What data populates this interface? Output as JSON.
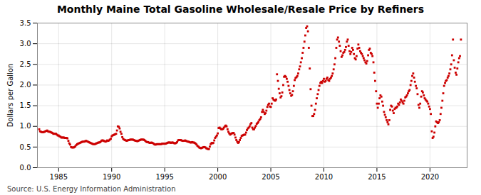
{
  "chart_data": {
    "type": "scatter",
    "title": "Monthly Maine Total Gasoline Wholesale/Resale Price by Refiners",
    "ylabel": "Dollars per Gallon",
    "source": "Source: U.S. Energy Information Administration",
    "xlim": [
      1983.0,
      2023.5
    ],
    "ylim": [
      0.0,
      3.5
    ],
    "xticks": [
      1985,
      1990,
      1995,
      2000,
      2005,
      2010,
      2015,
      2020
    ],
    "yticks": [
      {
        "value": 0,
        "label": "0.0"
      },
      0.5,
      {
        "value": 1,
        "label": "1.0"
      },
      1.5,
      {
        "value": 2,
        "label": "2.0"
      },
      2.5,
      {
        "value": 3,
        "label": "3.0"
      },
      3.5
    ],
    "grid": true,
    "color": "#cc0000",
    "marker": "square",
    "x": [
      1983.17,
      1983.25,
      1983.33,
      1983.42,
      1983.5,
      1983.58,
      1983.67,
      1983.75,
      1983.83,
      1983.92,
      1984,
      1984.08,
      1984.17,
      1984.25,
      1984.33,
      1984.42,
      1984.5,
      1984.58,
      1984.67,
      1984.75,
      1984.83,
      1984.92,
      1985,
      1985.08,
      1985.17,
      1985.25,
      1985.33,
      1985.42,
      1985.5,
      1985.58,
      1985.67,
      1985.75,
      1985.83,
      1985.92,
      1986,
      1986.08,
      1986.17,
      1986.25,
      1986.33,
      1986.42,
      1986.5,
      1986.58,
      1986.67,
      1986.75,
      1986.83,
      1986.92,
      1987,
      1987.08,
      1987.17,
      1987.25,
      1987.33,
      1987.42,
      1987.5,
      1987.58,
      1987.67,
      1987.75,
      1987.83,
      1987.92,
      1988,
      1988.08,
      1988.17,
      1988.25,
      1988.33,
      1988.42,
      1988.5,
      1988.58,
      1988.67,
      1988.75,
      1988.83,
      1988.92,
      1989,
      1989.08,
      1989.17,
      1989.25,
      1989.33,
      1989.42,
      1989.5,
      1989.58,
      1989.67,
      1989.75,
      1989.83,
      1989.92,
      1990,
      1990.08,
      1990.17,
      1990.25,
      1990.33,
      1990.42,
      1990.5,
      1990.58,
      1990.67,
      1990.75,
      1990.83,
      1990.92,
      1991,
      1991.08,
      1991.17,
      1991.25,
      1991.33,
      1991.42,
      1991.5,
      1991.58,
      1991.67,
      1991.75,
      1991.83,
      1991.92,
      1992,
      1992.08,
      1992.17,
      1992.25,
      1992.33,
      1992.42,
      1992.5,
      1992.58,
      1992.67,
      1992.75,
      1992.83,
      1992.92,
      1993,
      1993.08,
      1993.17,
      1993.25,
      1993.33,
      1993.42,
      1993.5,
      1993.58,
      1993.67,
      1993.75,
      1993.83,
      1993.92,
      1994,
      1994.08,
      1994.17,
      1994.25,
      1994.33,
      1994.42,
      1994.5,
      1994.58,
      1994.67,
      1994.75,
      1994.83,
      1994.92,
      1995,
      1995.08,
      1995.17,
      1995.25,
      1995.33,
      1995.42,
      1995.5,
      1995.58,
      1995.67,
      1995.75,
      1995.83,
      1995.92,
      1996,
      1996.08,
      1996.17,
      1996.25,
      1996.33,
      1996.42,
      1996.5,
      1996.58,
      1996.67,
      1996.75,
      1996.83,
      1996.92,
      1997,
      1997.08,
      1997.17,
      1997.25,
      1997.33,
      1997.42,
      1997.5,
      1997.58,
      1997.67,
      1997.75,
      1997.83,
      1997.92,
      1998,
      1998.08,
      1998.17,
      1998.25,
      1998.33,
      1998.42,
      1998.5,
      1998.58,
      1998.67,
      1998.75,
      1998.83,
      1998.92,
      1999,
      1999.08,
      1999.17,
      1999.25,
      1999.33,
      1999.42,
      1999.5,
      1999.58,
      1999.67,
      1999.75,
      1999.83,
      1999.92,
      2000,
      2000.08,
      2000.17,
      2000.25,
      2000.33,
      2000.42,
      2000.5,
      2000.58,
      2000.67,
      2000.75,
      2000.83,
      2000.92,
      2001,
      2001.08,
      2001.17,
      2001.25,
      2001.33,
      2001.42,
      2001.5,
      2001.58,
      2001.67,
      2001.75,
      2001.83,
      2001.92,
      2002,
      2002.08,
      2002.17,
      2002.25,
      2002.33,
      2002.42,
      2002.5,
      2002.58,
      2002.67,
      2002.75,
      2002.83,
      2002.92,
      2003,
      2003.08,
      2003.17,
      2003.25,
      2003.33,
      2003.42,
      2003.5,
      2003.58,
      2003.67,
      2003.75,
      2003.83,
      2003.92,
      2004,
      2004.08,
      2004.17,
      2004.25,
      2004.33,
      2004.42,
      2004.5,
      2004.58,
      2004.67,
      2004.75,
      2004.83,
      2004.92,
      2005,
      2005.08,
      2005.17,
      2005.25,
      2005.33,
      2005.42,
      2005.5,
      2005.58,
      2005.67,
      2005.75,
      2005.83,
      2005.92,
      2006,
      2006.08,
      2006.17,
      2006.25,
      2006.33,
      2006.42,
      2006.5,
      2006.58,
      2006.67,
      2006.75,
      2006.83,
      2006.92,
      2007,
      2007.08,
      2007.17,
      2007.25,
      2007.33,
      2007.42,
      2007.5,
      2007.58,
      2007.67,
      2007.75,
      2007.83,
      2007.92,
      2008,
      2008.08,
      2008.17,
      2008.25,
      2008.33,
      2008.42,
      2008.5,
      2008.58,
      2008.67,
      2008.75,
      2008.83,
      2008.92,
      2009,
      2009.08,
      2009.17,
      2009.25,
      2009.33,
      2009.42,
      2009.5,
      2009.58,
      2009.67,
      2009.75,
      2009.83,
      2009.92,
      2010,
      2010.08,
      2010.17,
      2010.25,
      2010.33,
      2010.42,
      2010.5,
      2010.58,
      2010.67,
      2010.75,
      2010.83,
      2010.92,
      2011,
      2011.08,
      2011.17,
      2011.25,
      2011.33,
      2011.42,
      2011.5,
      2011.58,
      2011.67,
      2011.75,
      2011.83,
      2011.92,
      2012,
      2012.08,
      2012.17,
      2012.25,
      2012.33,
      2012.42,
      2012.5,
      2012.58,
      2012.67,
      2012.75,
      2012.83,
      2012.92,
      2013,
      2013.08,
      2013.17,
      2013.25,
      2013.33,
      2013.42,
      2013.5,
      2013.58,
      2013.67,
      2013.75,
      2013.83,
      2013.92,
      2014,
      2014.08,
      2014.17,
      2014.25,
      2014.33,
      2014.42,
      2014.5,
      2014.58,
      2014.67,
      2014.75,
      2014.83,
      2014.92,
      2015,
      2015.08,
      2015.17,
      2015.25,
      2015.33,
      2015.42,
      2015.5,
      2015.58,
      2015.67,
      2015.75,
      2015.83,
      2015.92,
      2016,
      2016.08,
      2016.17,
      2016.25,
      2016.33,
      2016.42,
      2016.5,
      2016.58,
      2016.67,
      2016.75,
      2016.83,
      2016.92,
      2017,
      2017.08,
      2017.17,
      2017.25,
      2017.33,
      2017.42,
      2017.5,
      2017.58,
      2017.67,
      2017.75,
      2017.83,
      2017.92,
      2018,
      2018.08,
      2018.17,
      2018.25,
      2018.33,
      2018.42,
      2018.5,
      2018.58,
      2018.67,
      2018.75,
      2018.83,
      2018.92,
      2019,
      2019.08,
      2019.17,
      2019.25,
      2019.33,
      2019.42,
      2019.5,
      2019.58,
      2019.67,
      2019.75,
      2019.83,
      2019.92,
      2020,
      2020.08,
      2020.17,
      2020.25,
      2020.33,
      2020.42,
      2020.5,
      2020.58,
      2020.67,
      2020.75,
      2020.83,
      2020.92,
      2021,
      2021.08,
      2021.17,
      2021.25,
      2021.33,
      2021.42,
      2021.5,
      2021.58,
      2021.67,
      2021.75,
      2021.83,
      2021.92,
      2022,
      2022.08,
      2022.17,
      2022.25,
      2022.33,
      2022.42,
      2022.5,
      2022.58,
      2022.67,
      2022.75,
      2022.83,
      2022.92
    ],
    "values": [
      0.93,
      0.88,
      0.87,
      0.86,
      0.86,
      0.86,
      0.87,
      0.88,
      0.89,
      0.9,
      0.88,
      0.87,
      0.87,
      0.86,
      0.85,
      0.84,
      0.82,
      0.82,
      0.82,
      0.82,
      0.8,
      0.78,
      0.78,
      0.76,
      0.75,
      0.73,
      0.73,
      0.73,
      0.73,
      0.72,
      0.72,
      0.72,
      0.71,
      0.65,
      0.59,
      0.56,
      0.5,
      0.49,
      0.49,
      0.49,
      0.5,
      0.52,
      0.55,
      0.57,
      0.58,
      0.59,
      0.6,
      0.61,
      0.62,
      0.63,
      0.63,
      0.63,
      0.64,
      0.65,
      0.64,
      0.63,
      0.62,
      0.61,
      0.6,
      0.59,
      0.58,
      0.57,
      0.57,
      0.57,
      0.58,
      0.59,
      0.6,
      0.61,
      0.61,
      0.62,
      0.64,
      0.66,
      0.66,
      0.65,
      0.64,
      0.63,
      0.64,
      0.66,
      0.65,
      0.66,
      0.68,
      0.7,
      0.76,
      0.78,
      0.79,
      0.8,
      0.81,
      0.82,
      0.9,
      1.0,
      0.99,
      0.95,
      0.87,
      0.82,
      0.74,
      0.7,
      0.68,
      0.67,
      0.66,
      0.65,
      0.66,
      0.67,
      0.67,
      0.68,
      0.68,
      0.68,
      0.68,
      0.67,
      0.66,
      0.65,
      0.65,
      0.64,
      0.65,
      0.66,
      0.67,
      0.68,
      0.68,
      0.68,
      0.68,
      0.67,
      0.65,
      0.63,
      0.62,
      0.62,
      0.61,
      0.6,
      0.6,
      0.61,
      0.6,
      0.59,
      0.57,
      0.56,
      0.56,
      0.57,
      0.57,
      0.57,
      0.57,
      0.57,
      0.57,
      0.58,
      0.58,
      0.58,
      0.58,
      0.58,
      0.59,
      0.6,
      0.61,
      0.61,
      0.61,
      0.6,
      0.61,
      0.61,
      0.6,
      0.59,
      0.59,
      0.6,
      0.62,
      0.66,
      0.67,
      0.67,
      0.67,
      0.66,
      0.65,
      0.65,
      0.65,
      0.66,
      0.65,
      0.64,
      0.63,
      0.63,
      0.62,
      0.61,
      0.61,
      0.62,
      0.61,
      0.61,
      0.6,
      0.58,
      0.56,
      0.53,
      0.51,
      0.49,
      0.48,
      0.47,
      0.48,
      0.49,
      0.5,
      0.5,
      0.49,
      0.47,
      0.46,
      0.45,
      0.45,
      0.51,
      0.57,
      0.6,
      0.59,
      0.6,
      0.66,
      0.72,
      0.75,
      0.78,
      0.83,
      0.96,
      0.97,
      0.95,
      0.93,
      0.93,
      0.94,
      0.97,
      1.0,
      1.02,
      1.0,
      0.93,
      0.87,
      0.83,
      0.8,
      0.82,
      0.83,
      0.84,
      0.84,
      0.8,
      0.73,
      0.67,
      0.63,
      0.6,
      0.62,
      0.67,
      0.72,
      0.77,
      0.78,
      0.79,
      0.8,
      0.8,
      0.85,
      0.91,
      0.95,
      0.97,
      1.0,
      1.05,
      1.08,
      0.97,
      0.93,
      0.93,
      0.97,
      1.01,
      1.06,
      1.08,
      1.11,
      1.15,
      1.18,
      1.22,
      1.35,
      1.4,
      1.35,
      1.3,
      1.32,
      1.38,
      1.47,
      1.52,
      1.55,
      1.48,
      1.47,
      1.55,
      1.68,
      1.65,
      1.63,
      1.62,
      1.65,
      2.26,
      2.1,
      1.91,
      1.8,
      1.7,
      1.73,
      1.82,
      2.0,
      2.2,
      2.22,
      2.2,
      2.15,
      2.08,
      1.98,
      1.88,
      1.8,
      1.74,
      1.76,
      1.85,
      1.98,
      2.12,
      2.17,
      2.19,
      2.22,
      2.28,
      2.38,
      2.45,
      2.55,
      2.65,
      2.78,
      2.9,
      3.05,
      3.2,
      3.38,
      3.42,
      3.3,
      2.9,
      2.4,
      1.9,
      1.5,
      1.25,
      1.25,
      1.3,
      1.4,
      1.55,
      1.68,
      1.78,
      1.88,
      1.98,
      2.05,
      2.08,
      2.05,
      2.1,
      2.15,
      2.08,
      2.1,
      2.15,
      2.18,
      2.12,
      2.1,
      2.15,
      2.18,
      2.22,
      2.28,
      2.38,
      2.5,
      2.65,
      2.9,
      3.1,
      3.15,
      3.05,
      2.95,
      2.82,
      2.68,
      2.72,
      2.78,
      2.8,
      2.85,
      2.92,
      3.05,
      3.1,
      2.95,
      2.82,
      2.75,
      2.8,
      2.9,
      2.85,
      2.75,
      2.65,
      2.62,
      2.7,
      2.88,
      2.98,
      2.9,
      2.82,
      2.78,
      2.75,
      2.7,
      2.65,
      2.6,
      2.55,
      2.52,
      2.58,
      2.72,
      2.85,
      2.88,
      2.78,
      2.75,
      2.7,
      2.55,
      2.3,
      2.1,
      1.85,
      1.55,
      1.45,
      1.55,
      1.68,
      1.75,
      1.72,
      1.6,
      1.5,
      1.35,
      1.28,
      1.22,
      1.15,
      1.1,
      1.05,
      1.15,
      1.4,
      1.5,
      1.48,
      1.38,
      1.32,
      1.42,
      1.45,
      1.45,
      1.48,
      1.55,
      1.52,
      1.58,
      1.65,
      1.62,
      1.58,
      1.55,
      1.62,
      1.7,
      1.72,
      1.75,
      1.8,
      1.85,
      1.88,
      2.0,
      2.1,
      2.22,
      2.28,
      2.18,
      2.08,
      1.98,
      1.92,
      1.78,
      1.52,
      1.45,
      1.55,
      1.72,
      1.85,
      1.82,
      1.75,
      1.68,
      1.65,
      1.62,
      1.6,
      1.55,
      1.48,
      1.42,
      1.3,
      0.88,
      0.72,
      0.75,
      0.85,
      1.0,
      1.12,
      1.1,
      1.08,
      1.1,
      1.15,
      1.3,
      1.45,
      1.62,
      1.8,
      1.98,
      2.05,
      2.1,
      2.12,
      2.18,
      2.22,
      2.28,
      2.38,
      2.5,
      2.72,
      3.1,
      2.6,
      2.42,
      2.3,
      2.25,
      2.4,
      2.55,
      2.65,
      2.7,
      3.1
    ]
  }
}
